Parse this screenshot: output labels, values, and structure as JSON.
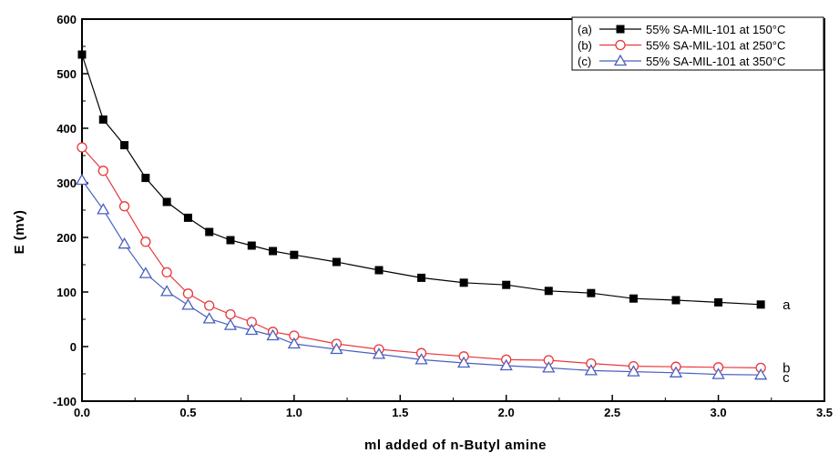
{
  "chart_data": {
    "type": "line",
    "title": "",
    "xlabel": "ml added of n-Butyl amine",
    "ylabel": "E (mv)",
    "xlim": [
      0,
      3.5
    ],
    "ylim": [
      -100,
      600
    ],
    "xticks": [
      "0.0",
      "0.5",
      "1.0",
      "1.5",
      "2.0",
      "2.5",
      "3.0",
      "3.5"
    ],
    "yticks": [
      "-100",
      "0",
      "100",
      "200",
      "300",
      "400",
      "500",
      "600"
    ],
    "grid": false,
    "legend_position": "top-right",
    "series": [
      {
        "name": "55% SA-MIL-101 at 150°C",
        "legend_prefix": "(a)",
        "end_label": "a",
        "marker": "filled-square",
        "color": "#000000",
        "x": [
          0,
          0.1,
          0.2,
          0.3,
          0.4,
          0.5,
          0.6,
          0.7,
          0.8,
          0.9,
          1.0,
          1.2,
          1.4,
          1.6,
          1.8,
          2.0,
          2.2,
          2.4,
          2.6,
          2.8,
          3.0,
          3.2
        ],
        "y": [
          535,
          416,
          369,
          309,
          265,
          236,
          210,
          195,
          185,
          175,
          168,
          155,
          140,
          126,
          117,
          113,
          102,
          98,
          88,
          85,
          81,
          77
        ]
      },
      {
        "name": "55% SA-MIL-101 at 250°C",
        "legend_prefix": "(b)",
        "end_label": "b",
        "marker": "open-circle",
        "color": "#e8383d",
        "x": [
          0,
          0.1,
          0.2,
          0.3,
          0.4,
          0.5,
          0.6,
          0.7,
          0.8,
          0.9,
          1.0,
          1.2,
          1.4,
          1.6,
          1.8,
          2.0,
          2.2,
          2.4,
          2.6,
          2.8,
          3.0,
          3.2
        ],
        "y": [
          365,
          322,
          257,
          192,
          136,
          97,
          75,
          59,
          45,
          27,
          20,
          5,
          -5,
          -12,
          -18,
          -24,
          -25,
          -31,
          -36,
          -37,
          -38,
          -39
        ]
      },
      {
        "name": "55% SA-MIL-101 at 350°C",
        "legend_prefix": "(c)",
        "end_label": "c",
        "marker": "open-triangle",
        "color": "#4a5fc1",
        "x": [
          0,
          0.1,
          0.2,
          0.3,
          0.4,
          0.5,
          0.6,
          0.7,
          0.8,
          0.9,
          1.0,
          1.2,
          1.4,
          1.6,
          1.8,
          2.0,
          2.2,
          2.4,
          2.6,
          2.8,
          3.0,
          3.2
        ],
        "y": [
          305,
          251,
          188,
          134,
          101,
          76,
          51,
          39,
          30,
          20,
          5,
          -5,
          -14,
          -24,
          -30,
          -35,
          -39,
          -44,
          -46,
          -48,
          -51,
          -52
        ]
      }
    ]
  }
}
